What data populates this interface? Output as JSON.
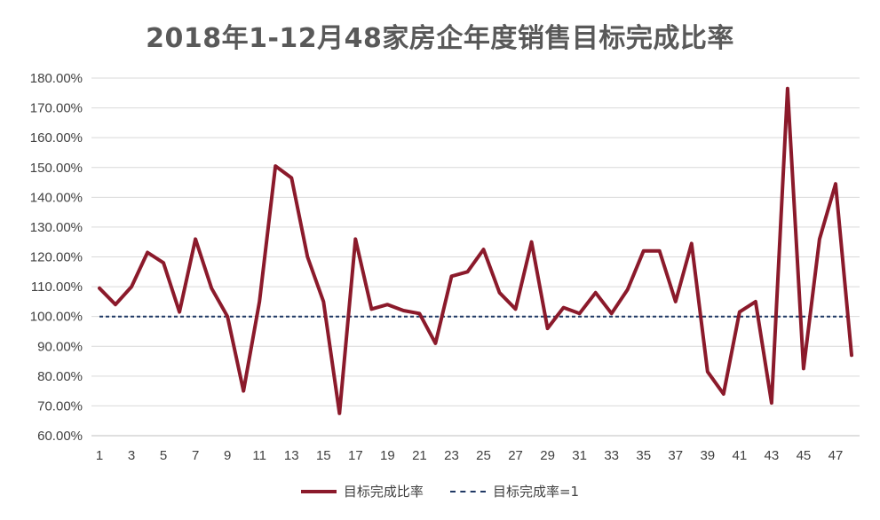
{
  "chart_data": {
    "type": "line",
    "title": "2018年1-12月48家房企年度销售目标完成比率",
    "xlabel": "",
    "ylabel": "",
    "ylim": [
      60,
      180
    ],
    "yticks": [
      "60.00%",
      "70.00%",
      "80.00%",
      "90.00%",
      "100.00%",
      "110.00%",
      "120.00%",
      "130.00%",
      "140.00%",
      "150.00%",
      "160.00%",
      "170.00%",
      "180.00%"
    ],
    "xticks": [
      "1",
      "3",
      "5",
      "7",
      "9",
      "11",
      "13",
      "15",
      "17",
      "19",
      "21",
      "23",
      "25",
      "27",
      "29",
      "31",
      "33",
      "35",
      "37",
      "39",
      "41",
      "43",
      "45",
      "47"
    ],
    "x": [
      1,
      2,
      3,
      4,
      5,
      6,
      7,
      8,
      9,
      10,
      11,
      12,
      13,
      14,
      15,
      16,
      17,
      18,
      19,
      20,
      21,
      22,
      23,
      24,
      25,
      26,
      27,
      28,
      29,
      30,
      31,
      32,
      33,
      34,
      35,
      36,
      37,
      38,
      39,
      40,
      41,
      42,
      43,
      44,
      45,
      46,
      47,
      48
    ],
    "grid": true,
    "legend_position": "bottom",
    "series": [
      {
        "name": "目标完成比率",
        "color": "#8b1a2b",
        "style": "solid",
        "values": [
          109.5,
          104,
          110,
          121.5,
          118,
          101.5,
          126,
          109.5,
          100,
          75,
          105,
          150.5,
          146.5,
          120,
          105,
          67.5,
          126,
          102.5,
          104,
          102,
          101,
          91,
          113.5,
          115,
          122.5,
          108,
          102.5,
          125,
          96,
          103,
          101,
          108,
          101,
          109,
          122,
          122,
          105,
          124.5,
          81.5,
          74,
          101.5,
          105,
          71,
          176.5,
          82.5,
          126,
          144.5,
          87
        ]
      },
      {
        "name": "目标完成率=1",
        "color": "#1f3864",
        "style": "dashed",
        "values": [
          100,
          100,
          100,
          100,
          100,
          100,
          100,
          100,
          100,
          100,
          100,
          100,
          100,
          100,
          100,
          100,
          100,
          100,
          100,
          100,
          100,
          100,
          100,
          100,
          100,
          100,
          100,
          100,
          100,
          100,
          100,
          100,
          100,
          100,
          100,
          100,
          100,
          100,
          100,
          100,
          100,
          100,
          100,
          100,
          100,
          100,
          100,
          100
        ]
      }
    ]
  }
}
